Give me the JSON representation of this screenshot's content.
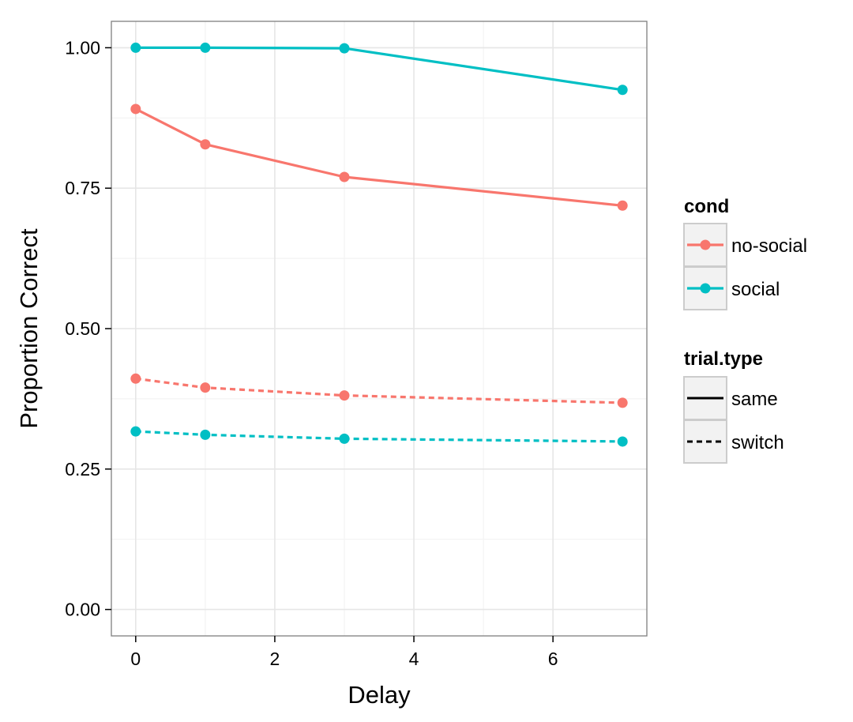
{
  "chart_data": {
    "type": "line",
    "title": "",
    "xlabel": "Delay",
    "ylabel": "Proportion Correct",
    "xlim": [
      -0.35,
      7.35
    ],
    "ylim": [
      -0.047,
      1.047
    ],
    "x_ticks": [
      "0",
      "2",
      "4",
      "6"
    ],
    "y_ticks": [
      "0.00",
      "0.25",
      "0.50",
      "0.75",
      "1.00"
    ],
    "grid": true,
    "legend_position": "right",
    "colors": {
      "no-social": "#F8766D",
      "social": "#00BFC4"
    },
    "legends": [
      {
        "title": "cond",
        "entries": [
          "no-social",
          "social"
        ]
      },
      {
        "title": "trial.type",
        "entries": [
          "same",
          "switch"
        ]
      }
    ],
    "series": [
      {
        "cond": "no-social",
        "trial_type": "same",
        "x": [
          0,
          1,
          3,
          7
        ],
        "y": [
          0.891,
          0.828,
          0.77,
          0.719
        ]
      },
      {
        "cond": "social",
        "trial_type": "same",
        "x": [
          0,
          1,
          3,
          7
        ],
        "y": [
          1.0,
          1.0,
          0.999,
          0.925
        ]
      },
      {
        "cond": "no-social",
        "trial_type": "switch",
        "x": [
          0,
          1,
          3,
          7
        ],
        "y": [
          0.411,
          0.395,
          0.381,
          0.368
        ]
      },
      {
        "cond": "social",
        "trial_type": "switch",
        "x": [
          0,
          1,
          3,
          7
        ],
        "y": [
          0.317,
          0.311,
          0.304,
          0.299
        ]
      }
    ]
  }
}
